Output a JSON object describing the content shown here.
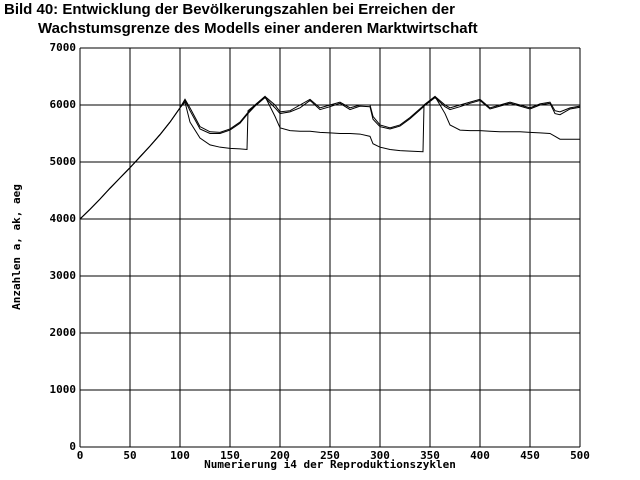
{
  "chart_data": {
    "type": "line",
    "title_lines": [
      "Bild 40: Entwicklung der Bevölkerungszahlen bei Erreichen der",
      "Wachstumsgrenze des Modells einer anderen Marktwirtschaft"
    ],
    "x_label": "Numerierung i4 der Reproduktionszyklen",
    "y_label": "Anzahlen a, ak, aeg",
    "x": [
      0,
      10,
      20,
      30,
      40,
      50,
      60,
      70,
      80,
      90,
      100,
      105,
      110,
      120,
      130,
      140,
      150,
      160,
      167,
      168,
      175,
      185,
      195,
      200,
      210,
      220,
      230,
      240,
      250,
      260,
      270,
      280,
      290,
      293,
      300,
      310,
      320,
      330,
      343,
      344,
      355,
      365,
      370,
      380,
      390,
      400,
      410,
      420,
      430,
      440,
      450,
      460,
      470,
      475,
      480,
      490,
      500
    ],
    "series": [
      {
        "color": "#000000",
        "values": [
          4000,
          4170,
          4350,
          4540,
          4720,
          4900,
          5090,
          5280,
          5480,
          5700,
          5950,
          6100,
          5950,
          5620,
          5530,
          5520,
          5580,
          5700,
          5850,
          5870,
          6000,
          6150,
          6000,
          5880,
          5900,
          6000,
          6100,
          5950,
          6000,
          6050,
          5950,
          6000,
          6000,
          5800,
          5650,
          5600,
          5650,
          5780,
          5980,
          6000,
          6150,
          6000,
          5950,
          6000,
          6050,
          6100,
          5950,
          6000,
          6050,
          6000,
          5950,
          6020,
          6050,
          5900,
          5880,
          5950,
          5980
        ]
      },
      {
        "color": "#000000",
        "values": [
          4000,
          4170,
          4350,
          4540,
          4720,
          4900,
          5090,
          5280,
          5480,
          5700,
          5950,
          6080,
          5900,
          5580,
          5500,
          5500,
          5560,
          5680,
          5830,
          5850,
          5980,
          6130,
          5950,
          5850,
          5880,
          5950,
          6080,
          5920,
          5970,
          6030,
          5920,
          5980,
          5970,
          5750,
          5620,
          5580,
          5630,
          5760,
          5960,
          5980,
          6130,
          5970,
          5920,
          5970,
          6030,
          6080,
          5930,
          5980,
          6030,
          5980,
          5930,
          6000,
          6030,
          5850,
          5830,
          5930,
          5960
        ]
      },
      {
        "color": "#000000",
        "values": [
          4000,
          4170,
          4350,
          4540,
          4720,
          4900,
          5090,
          5280,
          5480,
          5700,
          5950,
          6050,
          5700,
          5420,
          5300,
          5260,
          5240,
          5230,
          5220,
          5900,
          6000,
          6150,
          5800,
          5600,
          5550,
          5540,
          5540,
          5520,
          5510,
          5500,
          5500,
          5490,
          5450,
          5320,
          5260,
          5220,
          5200,
          5190,
          5180,
          6000,
          6150,
          5850,
          5650,
          5560,
          5550,
          5550,
          5540,
          5530,
          5530,
          5530,
          5520,
          5510,
          5500,
          5450,
          5400,
          5400,
          5400
        ]
      }
    ],
    "xlim": [
      0,
      500
    ],
    "xticks": [
      0,
      50,
      100,
      150,
      200,
      250,
      300,
      350,
      400,
      450,
      500
    ],
    "ylim": [
      0,
      7000
    ],
    "yticks": [
      0,
      1000,
      2000,
      3000,
      4000,
      5000,
      6000,
      7000
    ],
    "grid": true
  }
}
